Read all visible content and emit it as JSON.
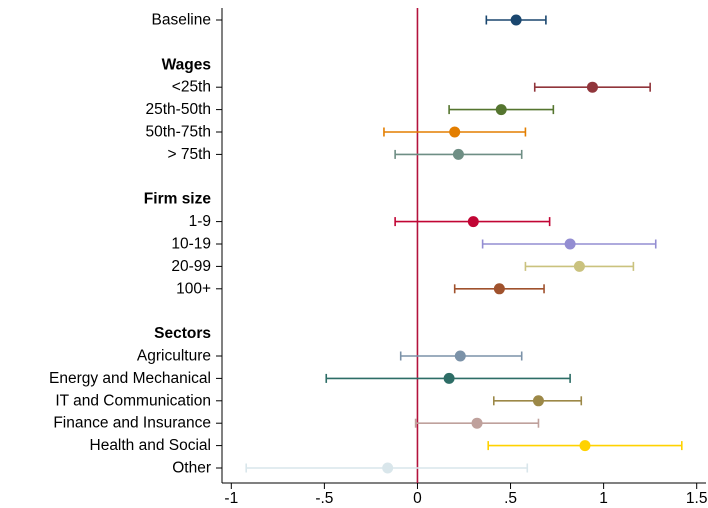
{
  "chart_data": {
    "type": "scatter",
    "subtype": "coefficient-plot-with-confidence-intervals",
    "title": "",
    "xlabel": "",
    "ylabel": "",
    "xlim": [
      -1.05,
      1.55
    ],
    "x_ticks": [
      -1,
      -0.5,
      0,
      0.5,
      1,
      1.5
    ],
    "x_tick_labels": [
      "-1",
      "-.5",
      "0",
      ".5",
      "1",
      "1.5"
    ],
    "reference_line_x": 0,
    "reference_line_color": "#b3123c",
    "grid": false,
    "legend": "none",
    "rows": [
      {
        "kind": "item",
        "label": "Baseline",
        "estimate": 0.53,
        "ci_low": 0.37,
        "ci_high": 0.69,
        "color": "#1a476f"
      },
      {
        "kind": "spacer"
      },
      {
        "kind": "header",
        "label": "Wages"
      },
      {
        "kind": "item",
        "label": "<25th",
        "estimate": 0.94,
        "ci_low": 0.63,
        "ci_high": 1.25,
        "color": "#90353b"
      },
      {
        "kind": "item",
        "label": "25th-50th",
        "estimate": 0.45,
        "ci_low": 0.17,
        "ci_high": 0.73,
        "color": "#55752f"
      },
      {
        "kind": "item",
        "label": "50th-75th",
        "estimate": 0.2,
        "ci_low": -0.18,
        "ci_high": 0.58,
        "color": "#e37e00"
      },
      {
        "kind": "item",
        "label": "> 75th",
        "estimate": 0.22,
        "ci_low": -0.12,
        "ci_high": 0.56,
        "color": "#6e8e84"
      },
      {
        "kind": "spacer"
      },
      {
        "kind": "header",
        "label": "Firm size"
      },
      {
        "kind": "item",
        "label": "1-9",
        "estimate": 0.3,
        "ci_low": -0.12,
        "ci_high": 0.71,
        "color": "#c10534"
      },
      {
        "kind": "item",
        "label": "10-19",
        "estimate": 0.82,
        "ci_low": 0.35,
        "ci_high": 1.28,
        "color": "#938dd2"
      },
      {
        "kind": "item",
        "label": "20-99",
        "estimate": 0.87,
        "ci_low": 0.58,
        "ci_high": 1.16,
        "color": "#cac27e"
      },
      {
        "kind": "item",
        "label": "100+",
        "estimate": 0.44,
        "ci_low": 0.2,
        "ci_high": 0.68,
        "color": "#a0522d"
      },
      {
        "kind": "spacer"
      },
      {
        "kind": "header",
        "label": "Sectors"
      },
      {
        "kind": "item",
        "label": "Agriculture",
        "estimate": 0.23,
        "ci_low": -0.09,
        "ci_high": 0.56,
        "color": "#7b92a8"
      },
      {
        "kind": "item",
        "label": "Energy and Mechanical",
        "estimate": 0.17,
        "ci_low": -0.49,
        "ci_high": 0.82,
        "color": "#2d6d66"
      },
      {
        "kind": "item",
        "label": "IT and Communication",
        "estimate": 0.65,
        "ci_low": 0.41,
        "ci_high": 0.88,
        "color": "#9c8847"
      },
      {
        "kind": "item",
        "label": "Finance and Insurance",
        "estimate": 0.32,
        "ci_low": -0.01,
        "ci_high": 0.65,
        "color": "#bfa19c"
      },
      {
        "kind": "item",
        "label": "Health and Social",
        "estimate": 0.9,
        "ci_low": 0.38,
        "ci_high": 1.42,
        "color": "#ffd200"
      },
      {
        "kind": "item",
        "label": "Other",
        "estimate": -0.16,
        "ci_low": -0.92,
        "ci_high": 0.59,
        "color": "#d9e6eb"
      }
    ]
  }
}
